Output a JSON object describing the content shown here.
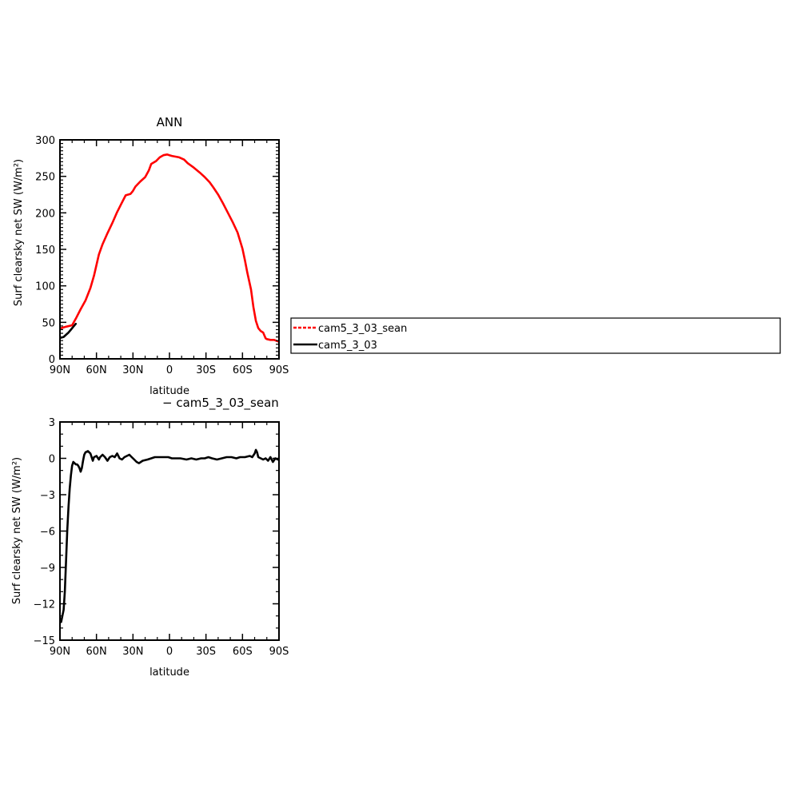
{
  "chart_data": [
    {
      "type": "line",
      "title": "ANN",
      "xlabel": "latitude",
      "ylabel": "Surf clearsky net SW (W/m²)",
      "xlim": [
        90,
        -90
      ],
      "ylim": [
        0,
        300
      ],
      "xtick_values": [
        90,
        60,
        30,
        0,
        -30,
        -60,
        -90
      ],
      "xtick_labels": [
        "90N",
        "60N",
        "30N",
        "0",
        "30S",
        "60S",
        "90S"
      ],
      "ytick_values": [
        0,
        50,
        100,
        150,
        200,
        250,
        300
      ],
      "ytick_labels": [
        "0",
        "50",
        "100",
        "150",
        "200",
        "250",
        "300"
      ],
      "legend": {
        "placement": "right",
        "entries": [
          {
            "label": "cam5_3_03_sean",
            "color": "#ff0000",
            "style": "dashed"
          },
          {
            "label": "cam5_3_03",
            "color": "#000000",
            "style": "solid"
          }
        ]
      },
      "series": [
        {
          "name": "cam5_3_03",
          "color": "#000000",
          "x": [
            89,
            87,
            85,
            83,
            81,
            79,
            77
          ],
          "y": [
            29,
            30,
            33,
            36,
            40,
            44,
            48
          ]
        },
        {
          "name": "cam5_3_03_sean",
          "color": "#ff0000",
          "x": [
            89,
            85,
            80,
            77,
            73,
            69,
            65,
            62,
            58,
            55,
            51,
            47,
            43,
            40,
            36,
            32,
            30,
            28,
            24,
            20,
            17,
            15,
            11,
            8,
            5,
            2,
            0,
            -2,
            -5,
            -8,
            -12,
            -15,
            -20,
            -25,
            -29,
            -33,
            -36,
            -40,
            -44,
            -48,
            -52,
            -56,
            -60,
            -62,
            -64,
            -67,
            -69,
            -71,
            -73,
            -75,
            -77,
            -79,
            -80,
            -83,
            -86,
            -89
          ],
          "y": [
            42,
            44,
            46,
            55,
            68,
            80,
            97,
            114,
            143,
            157,
            172,
            186,
            201,
            211,
            224,
            226,
            230,
            236,
            243,
            249,
            258,
            267,
            271,
            276,
            279,
            280,
            279,
            278,
            277,
            276,
            273,
            268,
            262,
            255,
            249,
            242,
            235,
            225,
            213,
            200,
            187,
            173,
            151,
            135,
            118,
            95,
            71,
            52,
            42,
            38,
            36,
            28,
            27,
            26,
            26,
            24
          ]
        }
      ]
    },
    {
      "type": "line",
      "title": "− cam5_3_03_sean",
      "xlabel": "latitude",
      "ylabel": "Surf clearsky net SW (W/m²)",
      "xlim": [
        90,
        -90
      ],
      "ylim": [
        -15,
        3
      ],
      "xtick_values": [
        90,
        60,
        30,
        0,
        -30,
        -60,
        -90
      ],
      "xtick_labels": [
        "90N",
        "60N",
        "30N",
        "0",
        "30S",
        "60S",
        "90S"
      ],
      "ytick_values": [
        3,
        0,
        -3,
        -6,
        -9,
        -12,
        -15
      ],
      "ytick_labels": [
        "3",
        "0",
        "−3",
        "−6",
        "−9",
        "−12",
        "−15"
      ],
      "series": [
        {
          "color": "#000000",
          "x": [
            89,
            88,
            87,
            86,
            85,
            84,
            83,
            82,
            81,
            80,
            79,
            78,
            77,
            76,
            75,
            74,
            73,
            72,
            71,
            70,
            69,
            67,
            65,
            63,
            62,
            60,
            58,
            57,
            55,
            53,
            51,
            49,
            47,
            45,
            43,
            41,
            39,
            37,
            35,
            33,
            31,
            29,
            27,
            25,
            22,
            18,
            15,
            12,
            10,
            7,
            4,
            1,
            -2,
            -5,
            -9,
            -14,
            -18,
            -22,
            -26,
            -29,
            -32,
            -35,
            -39,
            -43,
            -47,
            -51,
            -55,
            -58,
            -62,
            -66,
            -68,
            -70,
            -71,
            -72,
            -73,
            -75,
            -77,
            -79,
            -81,
            -83,
            -85,
            -87,
            -89
          ],
          "y": [
            -13.5,
            -13.0,
            -12.5,
            -11.0,
            -8.5,
            -6.0,
            -4.0,
            -2.5,
            -1.4,
            -0.6,
            -0.3,
            -0.4,
            -0.5,
            -0.5,
            -0.6,
            -0.8,
            -1.1,
            -0.8,
            -0.2,
            0.3,
            0.5,
            0.6,
            0.4,
            -0.2,
            0.1,
            0.2,
            -0.1,
            0.1,
            0.3,
            0.1,
            -0.2,
            0.1,
            0.2,
            0.1,
            0.4,
            0.0,
            -0.1,
            0.1,
            0.2,
            0.3,
            0.1,
            -0.1,
            -0.3,
            -0.4,
            -0.2,
            -0.1,
            0.0,
            0.1,
            0.1,
            0.1,
            0.1,
            0.1,
            0.0,
            0.0,
            0.0,
            -0.1,
            0.0,
            -0.1,
            0.0,
            0.0,
            0.1,
            0.0,
            -0.1,
            0.0,
            0.1,
            0.1,
            0.0,
            0.1,
            0.1,
            0.2,
            0.1,
            0.4,
            0.7,
            0.5,
            0.1,
            0.0,
            -0.1,
            0.0,
            -0.2,
            0.1,
            -0.3,
            0.0,
            -0.1
          ]
        }
      ]
    }
  ]
}
